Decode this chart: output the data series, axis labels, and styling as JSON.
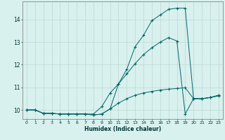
{
  "xlabel": "Humidex (Indice chaleur)",
  "background_color": "#d8f0ee",
  "grid_color": "#c0d8d4",
  "line_color": "#006666",
  "xlim": [
    -0.5,
    23.5
  ],
  "ylim": [
    9.6,
    14.8
  ],
  "yticks": [
    10,
    11,
    12,
    13,
    14
  ],
  "xticks": [
    0,
    1,
    2,
    3,
    4,
    5,
    6,
    7,
    8,
    9,
    10,
    11,
    12,
    13,
    14,
    15,
    16,
    17,
    18,
    19,
    20,
    21,
    22,
    23
  ],
  "series1_x": [
    0,
    1,
    2,
    3,
    4,
    5,
    6,
    7,
    8,
    9,
    10,
    11,
    12,
    13,
    14,
    15,
    16,
    17,
    18,
    19,
    20,
    21,
    22,
    23
  ],
  "series1_y": [
    10.0,
    10.0,
    9.85,
    9.85,
    9.82,
    9.82,
    9.82,
    9.82,
    9.78,
    9.82,
    10.05,
    10.3,
    10.5,
    10.65,
    10.75,
    10.82,
    10.88,
    10.92,
    10.95,
    10.98,
    10.5,
    10.5,
    10.55,
    10.62
  ],
  "series2_x": [
    0,
    1,
    2,
    3,
    4,
    5,
    6,
    7,
    8,
    9,
    10,
    11,
    12,
    13,
    14,
    15,
    16,
    17,
    18,
    19,
    20,
    21,
    22,
    23
  ],
  "series2_y": [
    10.0,
    10.0,
    9.85,
    9.85,
    9.82,
    9.82,
    9.82,
    9.82,
    9.82,
    10.15,
    10.75,
    11.15,
    11.6,
    12.05,
    12.45,
    12.75,
    13.0,
    13.2,
    13.05,
    9.82,
    10.5,
    10.5,
    10.55,
    10.65
  ],
  "series3_x": [
    0,
    1,
    2,
    3,
    4,
    5,
    6,
    7,
    8,
    9,
    10,
    11,
    12,
    13,
    14,
    15,
    16,
    17,
    18,
    19,
    20,
    21,
    22,
    23
  ],
  "series3_y": [
    10.0,
    10.0,
    9.85,
    9.85,
    9.82,
    9.82,
    9.82,
    9.82,
    9.78,
    9.82,
    10.05,
    11.15,
    11.8,
    12.8,
    13.3,
    13.95,
    14.2,
    14.45,
    14.5,
    14.5,
    10.5,
    10.5,
    10.55,
    10.65
  ]
}
